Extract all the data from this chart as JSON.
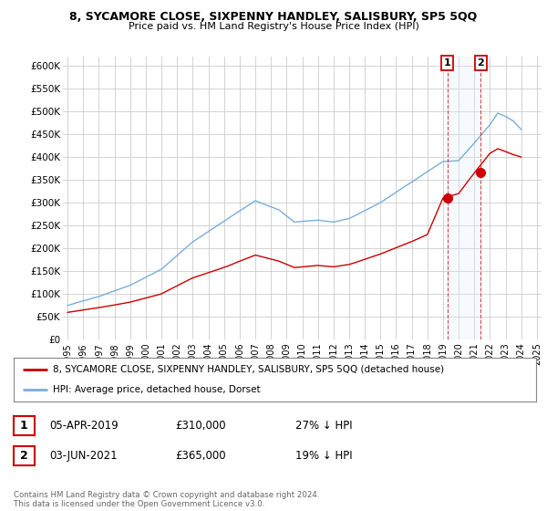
{
  "title1": "8, SYCAMORE CLOSE, SIXPENNY HANDLEY, SALISBURY, SP5 5QQ",
  "title2": "Price paid vs. HM Land Registry's House Price Index (HPI)",
  "ylim": [
    0,
    620000
  ],
  "yticks": [
    0,
    50000,
    100000,
    150000,
    200000,
    250000,
    300000,
    350000,
    400000,
    450000,
    500000,
    550000,
    600000
  ],
  "ytick_labels": [
    "£0",
    "£50K",
    "£100K",
    "£150K",
    "£200K",
    "£250K",
    "£300K",
    "£350K",
    "£400K",
    "£450K",
    "£500K",
    "£550K",
    "£600K"
  ],
  "background_color": "#ffffff",
  "grid_color": "#cccccc",
  "hpi_color": "#7aaedc",
  "price_color": "#cc0000",
  "shade_color": "#ddeeff",
  "legend_label_price": "8, SYCAMORE CLOSE, SIXPENNY HANDLEY, SALISBURY, SP5 5QQ (detached house)",
  "legend_label_hpi": "HPI: Average price, detached house, Dorset",
  "transaction1_date": "05-APR-2019",
  "transaction1_price": "£310,000",
  "transaction1_hpi": "27% ↓ HPI",
  "transaction2_date": "03-JUN-2021",
  "transaction2_price": "£365,000",
  "transaction2_hpi": "19% ↓ HPI",
  "footer": "Contains HM Land Registry data © Crown copyright and database right 2024.\nThis data is licensed under the Open Government Licence v3.0.",
  "marker1_x": 2019.27,
  "marker1_y": 310000,
  "marker2_x": 2021.42,
  "marker2_y": 365000,
  "vline1_x": 2019.27,
  "vline2_x": 2021.42,
  "x_tick_years": [
    1995,
    1996,
    1997,
    1998,
    1999,
    2000,
    2001,
    2002,
    2003,
    2004,
    2005,
    2006,
    2007,
    2008,
    2009,
    2010,
    2011,
    2012,
    2013,
    2014,
    2015,
    2016,
    2017,
    2018,
    2019,
    2020,
    2021,
    2022,
    2023,
    2024,
    2025
  ]
}
